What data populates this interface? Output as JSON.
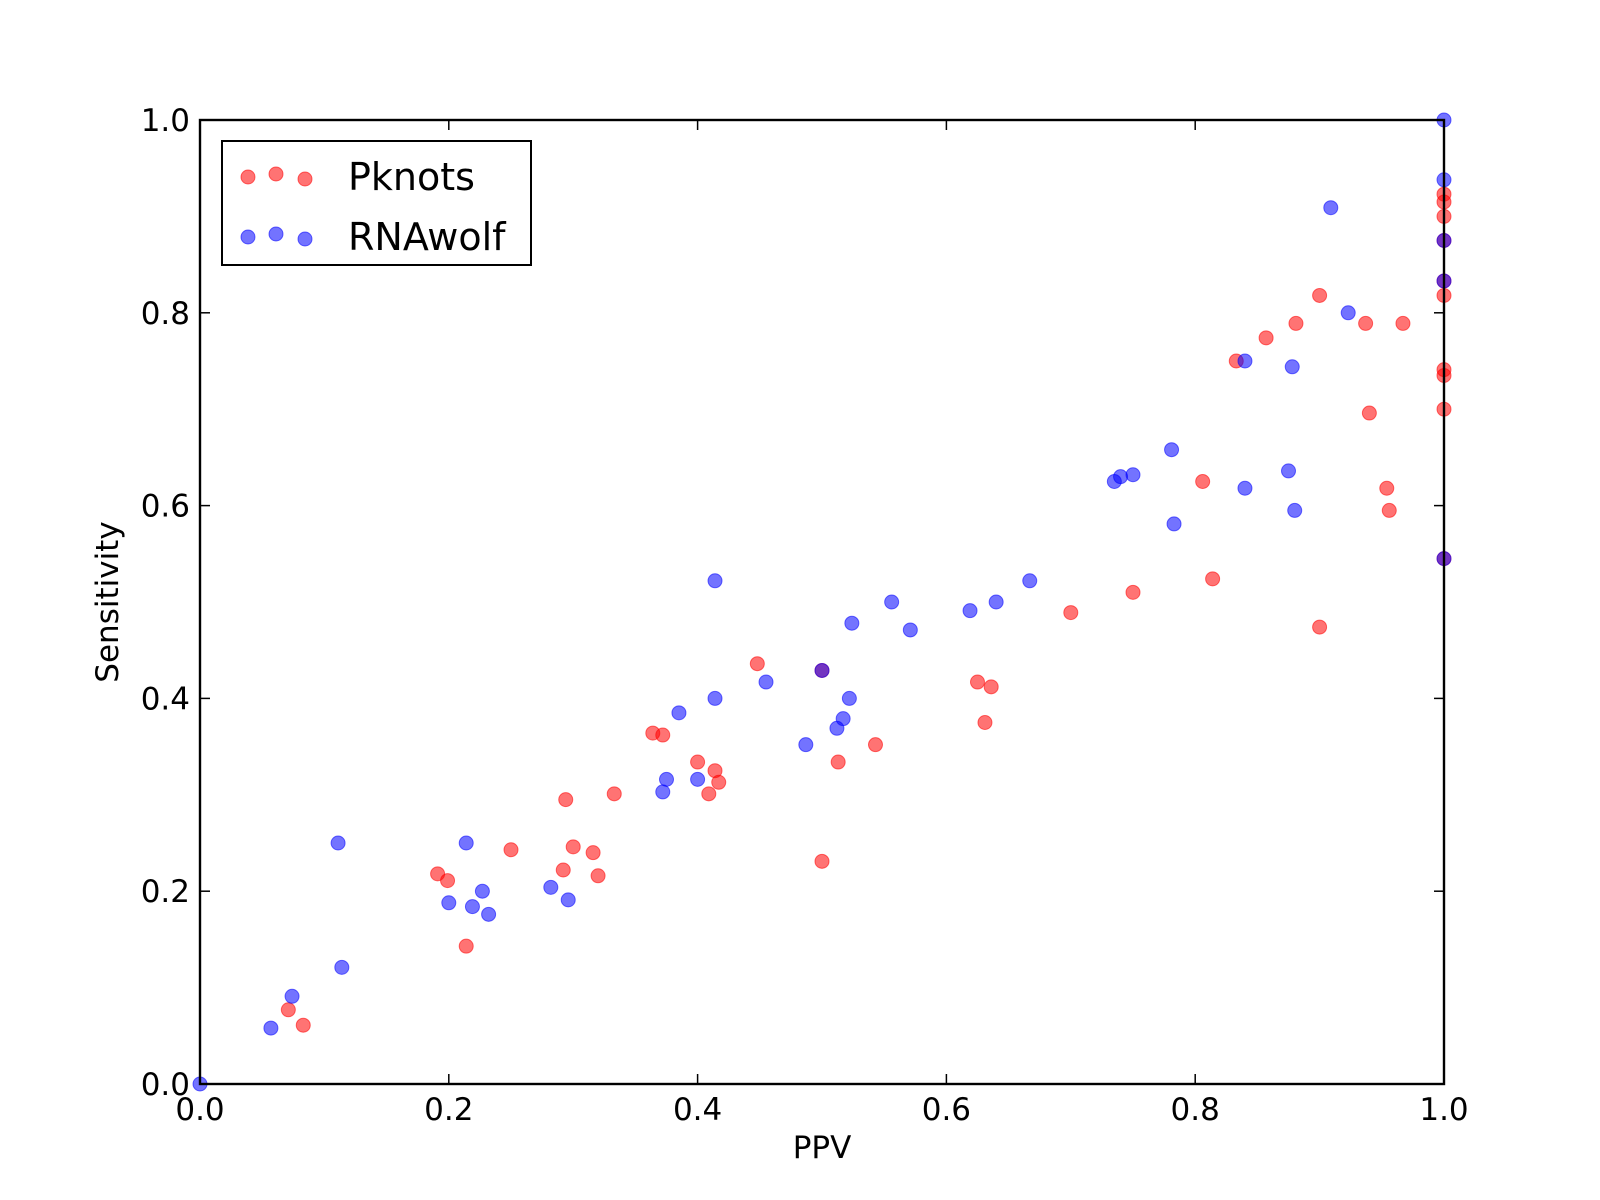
{
  "chart_data": {
    "type": "scatter",
    "title": "",
    "xlabel": "PPV",
    "ylabel": "Sensitivity",
    "xlim": [
      0,
      1
    ],
    "ylim": [
      0,
      1
    ],
    "x_ticks": [
      "0.0",
      "0.2",
      "0.4",
      "0.6",
      "0.8",
      "1.0"
    ],
    "y_ticks": [
      "0.0",
      "0.2",
      "0.4",
      "0.6",
      "0.8",
      "1.0"
    ],
    "grid": false,
    "legend_position": "top-left",
    "series": [
      {
        "name": "Pknots",
        "color": "#ff0000",
        "points": [
          [
            0.071,
            0.077
          ],
          [
            0.083,
            0.061
          ],
          [
            0.191,
            0.218
          ],
          [
            0.199,
            0.211
          ],
          [
            0.214,
            0.143
          ],
          [
            0.25,
            0.243
          ],
          [
            0.292,
            0.222
          ],
          [
            0.294,
            0.295
          ],
          [
            0.3,
            0.246
          ],
          [
            0.316,
            0.24
          ],
          [
            0.32,
            0.216
          ],
          [
            0.333,
            0.301
          ],
          [
            0.364,
            0.364
          ],
          [
            0.372,
            0.362
          ],
          [
            0.4,
            0.334
          ],
          [
            0.409,
            0.301
          ],
          [
            0.414,
            0.325
          ],
          [
            0.417,
            0.313
          ],
          [
            0.448,
            0.436
          ],
          [
            0.5,
            0.429
          ],
          [
            0.5,
            0.231
          ],
          [
            0.513,
            0.334
          ],
          [
            0.543,
            0.352
          ],
          [
            0.625,
            0.417
          ],
          [
            0.631,
            0.375
          ],
          [
            0.636,
            0.412
          ],
          [
            0.7,
            0.489
          ],
          [
            0.75,
            0.51
          ],
          [
            0.806,
            0.625
          ],
          [
            0.814,
            0.524
          ],
          [
            0.833,
            0.75
          ],
          [
            0.857,
            0.774
          ],
          [
            0.881,
            0.789
          ],
          [
            0.9,
            0.818
          ],
          [
            0.9,
            0.474
          ],
          [
            0.937,
            0.789
          ],
          [
            0.94,
            0.696
          ],
          [
            0.954,
            0.618
          ],
          [
            0.956,
            0.595
          ],
          [
            0.967,
            0.789
          ],
          [
            1.0,
            0.923
          ],
          [
            1.0,
            0.915
          ],
          [
            1.0,
            0.9
          ],
          [
            1.0,
            0.875
          ],
          [
            1.0,
            0.833
          ],
          [
            1.0,
            0.818
          ],
          [
            1.0,
            0.741
          ],
          [
            1.0,
            0.735
          ],
          [
            1.0,
            0.7
          ],
          [
            1.0,
            0.545
          ]
        ]
      },
      {
        "name": "RNAwolf",
        "color": "#0000ff",
        "points": [
          [
            0.0,
            0.0
          ],
          [
            0.057,
            0.058
          ],
          [
            0.074,
            0.091
          ],
          [
            0.111,
            0.25
          ],
          [
            0.114,
            0.121
          ],
          [
            0.2,
            0.188
          ],
          [
            0.214,
            0.25
          ],
          [
            0.219,
            0.184
          ],
          [
            0.227,
            0.2
          ],
          [
            0.232,
            0.176
          ],
          [
            0.282,
            0.204
          ],
          [
            0.296,
            0.191
          ],
          [
            0.372,
            0.303
          ],
          [
            0.375,
            0.316
          ],
          [
            0.385,
            0.385
          ],
          [
            0.4,
            0.316
          ],
          [
            0.414,
            0.522
          ],
          [
            0.414,
            0.4
          ],
          [
            0.455,
            0.417
          ],
          [
            0.487,
            0.352
          ],
          [
            0.5,
            0.429
          ],
          [
            0.512,
            0.369
          ],
          [
            0.517,
            0.379
          ],
          [
            0.522,
            0.4
          ],
          [
            0.524,
            0.478
          ],
          [
            0.556,
            0.5
          ],
          [
            0.571,
            0.471
          ],
          [
            0.619,
            0.491
          ],
          [
            0.64,
            0.5
          ],
          [
            0.667,
            0.522
          ],
          [
            0.735,
            0.625
          ],
          [
            0.74,
            0.63
          ],
          [
            0.75,
            0.632
          ],
          [
            0.781,
            0.658
          ],
          [
            0.783,
            0.581
          ],
          [
            0.84,
            0.75
          ],
          [
            0.84,
            0.618
          ],
          [
            0.875,
            0.636
          ],
          [
            0.878,
            0.744
          ],
          [
            0.88,
            0.595
          ],
          [
            0.909,
            0.909
          ],
          [
            0.923,
            0.8
          ],
          [
            1.0,
            1.0
          ],
          [
            1.0,
            0.938
          ],
          [
            1.0,
            0.875
          ],
          [
            1.0,
            0.833
          ],
          [
            1.0,
            0.545
          ]
        ]
      }
    ]
  }
}
